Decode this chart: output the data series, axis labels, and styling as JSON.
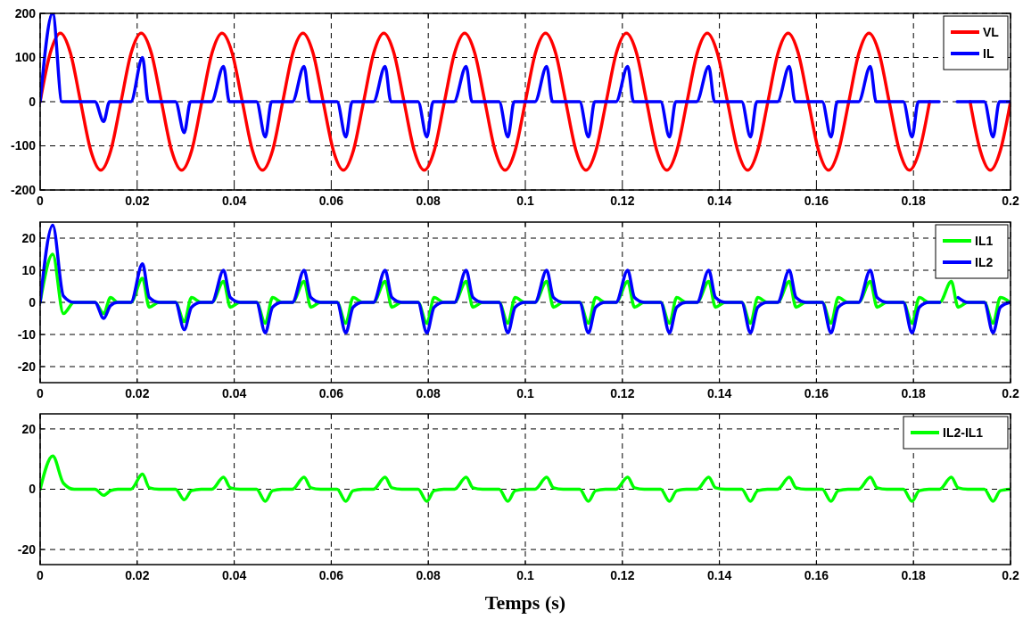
{
  "chart_data": [
    {
      "type": "line",
      "xlim": [
        0,
        0.2
      ],
      "xticks": [
        0,
        0.02,
        0.04,
        0.06,
        0.08,
        0.1,
        0.12,
        0.14,
        0.16,
        0.18,
        0.2
      ],
      "ylim": [
        -200,
        200
      ],
      "yticks": [
        -200,
        -100,
        0,
        100,
        200
      ],
      "grid": true,
      "legend": "top right",
      "series": [
        {
          "name": "VL",
          "color": "#ff0000",
          "x": [
            0,
            0.00208,
            0.00417,
            0.00625,
            0.00833,
            0.01042,
            0.0125,
            0.01458,
            0.01667,
            0.01875,
            0.02083,
            0.02292,
            0.025,
            0.02708,
            0.02917,
            0.03125,
            0.03333,
            0.03542,
            0.0375,
            0.03958,
            0.04167,
            0.04375,
            0.04583,
            0.04792,
            0.05,
            0.05208,
            0.05417,
            0.05625,
            0.05833,
            0.06042,
            0.0625,
            0.06458,
            0.06667,
            0.06875,
            0.07083,
            0.07292,
            0.075,
            0.07708,
            0.07917,
            0.08125,
            0.08333,
            0.08542,
            0.0875,
            0.08958,
            0.09167,
            0.09375,
            0.09583,
            0.09792,
            0.1,
            0.10208,
            0.10417,
            0.10625,
            0.10833,
            0.11042,
            0.1125,
            0.11458,
            0.11667,
            0.11875,
            0.12083,
            0.12292,
            0.125,
            0.12708,
            0.12917,
            0.13125,
            0.13333,
            0.13542,
            0.1375,
            0.13958,
            0.14167,
            0.14375,
            0.14583,
            0.14792,
            0.15,
            0.15208,
            0.15417,
            0.15625,
            0.15833,
            0.16042,
            0.1625,
            0.16458,
            0.16667,
            0.16875,
            0.17083,
            0.17292,
            0.175,
            0.17708,
            0.17917,
            0.18125,
            0.18333,
            0.18542,
            0.1875,
            0.18958,
            0.19167,
            0.19375,
            0.19583,
            0.19792,
            0.2
          ],
          "values": [
            0,
            110,
            155,
            110,
            0,
            -110,
            -155,
            -110,
            0,
            110,
            155,
            110,
            0,
            -110,
            -155,
            -110,
            0,
            110,
            155,
            110,
            0,
            -110,
            -155,
            -110,
            0,
            110,
            155,
            110,
            0,
            -110,
            -155,
            -110,
            0,
            110,
            155,
            110,
            0,
            -110,
            -155,
            -110,
            0,
            110,
            155,
            110,
            0,
            -110,
            -155,
            -110,
            0,
            110,
            155,
            110,
            0,
            -110,
            -155,
            -110,
            0,
            110,
            155,
            110,
            0,
            -110,
            -155,
            -110,
            0,
            110,
            155,
            110,
            0,
            -110,
            -155,
            -110,
            0,
            110,
            155,
            110,
            0,
            -110,
            -155,
            -110,
            0,
            110,
            155,
            110,
            0,
            -110,
            -155,
            -110,
            0,
            null,
            null,
            null,
            0,
            -110,
            -155,
            -110,
            0
          ]
        },
        {
          "name": "IL",
          "color": "#0000ff",
          "x": [
            0,
            0.0026,
            0.0045,
            0.0113,
            0.0131,
            0.0143,
            0.0187,
            0.0211,
            0.0223,
            0.0279,
            0.0297,
            0.031,
            0.0353,
            0.0378,
            0.039,
            0.0446,
            0.0464,
            0.0477,
            0.052,
            0.0544,
            0.0556,
            0.0612,
            0.063,
            0.0643,
            0.0687,
            0.0711,
            0.0723,
            0.0779,
            0.0797,
            0.081,
            0.0853,
            0.0878,
            0.089,
            0.0946,
            0.0964,
            0.0977,
            0.102,
            0.1044,
            0.1056,
            0.1112,
            0.113,
            0.1143,
            0.1187,
            0.1211,
            0.1223,
            0.1279,
            0.1297,
            0.131,
            0.1353,
            0.1378,
            0.139,
            0.1446,
            0.1464,
            0.1477,
            0.152,
            0.1544,
            0.1556,
            0.1612,
            0.163,
            0.1643,
            0.1687,
            0.1711,
            0.1723,
            0.1779,
            0.1797,
            0.181,
            0.1853,
            0.1878,
            0.189,
            0.1946,
            0.1964,
            0.1977,
            0.2
          ],
          "values": [
            0,
            200,
            0,
            0,
            -45,
            0,
            0,
            100,
            0,
            0,
            -70,
            0,
            0,
            80,
            0,
            0,
            -80,
            0,
            0,
            80,
            0,
            0,
            -80,
            0,
            0,
            80,
            0,
            0,
            -80,
            0,
            0,
            80,
            0,
            0,
            -80,
            0,
            0,
            80,
            0,
            0,
            -80,
            0,
            0,
            80,
            0,
            0,
            -80,
            0,
            0,
            80,
            0,
            0,
            -80,
            0,
            0,
            80,
            0,
            0,
            -80,
            0,
            0,
            80,
            0,
            0,
            -80,
            0,
            0,
            null,
            0,
            0,
            -80,
            0,
            0
          ]
        }
      ]
    },
    {
      "type": "line",
      "xlim": [
        0,
        0.2
      ],
      "xticks": [
        0,
        0.02,
        0.04,
        0.06,
        0.08,
        0.1,
        0.12,
        0.14,
        0.16,
        0.18,
        0.2
      ],
      "ylim": [
        -25,
        25
      ],
      "yticks": [
        -20,
        -10,
        0,
        10,
        20
      ],
      "grid": true,
      "legend": "top right",
      "x": [
        0,
        0.0026,
        0.0048,
        0.007,
        0.0113,
        0.0131,
        0.0145,
        0.016,
        0.0187,
        0.0211,
        0.0225,
        0.0245,
        0.0279,
        0.0297,
        0.0312,
        0.0332,
        0.0354,
        0.0378,
        0.0392,
        0.0412,
        0.0446,
        0.0464,
        0.0479,
        0.0499,
        0.052,
        0.0544,
        0.0558,
        0.0578,
        0.0612,
        0.063,
        0.0645,
        0.0665,
        0.0687,
        0.0711,
        0.0725,
        0.0745,
        0.0779,
        0.0797,
        0.0812,
        0.0832,
        0.0854,
        0.0878,
        0.0892,
        0.0912,
        0.0946,
        0.0964,
        0.0979,
        0.0999,
        0.102,
        0.1044,
        0.1058,
        0.1078,
        0.1112,
        0.113,
        0.1145,
        0.1165,
        0.1187,
        0.1211,
        0.1225,
        0.1245,
        0.1279,
        0.1297,
        0.1312,
        0.1332,
        0.1354,
        0.1378,
        0.1392,
        0.1412,
        0.1446,
        0.1464,
        0.1479,
        0.1499,
        0.152,
        0.1544,
        0.1558,
        0.1578,
        0.1612,
        0.163,
        0.1645,
        0.1665,
        0.1687,
        0.1711,
        0.1725,
        0.1745,
        0.1779,
        0.1797,
        0.1812,
        0.1832,
        0.1854,
        0.1878,
        0.1892,
        0.1912,
        0.1946,
        0.1964,
        0.1979,
        0.1999
      ],
      "series": [
        {
          "name": "IL1",
          "color": "#00ff00",
          "values": [
            0,
            15,
            -3.5,
            0,
            0,
            -3.5,
            1.5,
            0,
            0,
            7.5,
            -1.5,
            0,
            0,
            -6,
            1.5,
            0,
            0,
            6.5,
            -1.5,
            0,
            0,
            -6.5,
            1.5,
            0,
            0,
            6.5,
            -1.5,
            0,
            0,
            -6.5,
            1.5,
            0,
            0,
            6.5,
            -1.5,
            0,
            0,
            -6.5,
            1.5,
            0,
            0,
            6.5,
            -1.5,
            0,
            0,
            -6.5,
            1.5,
            0,
            0,
            6.5,
            -1.5,
            0,
            0,
            -6.5,
            1.5,
            0,
            0,
            6.5,
            -1.5,
            0,
            0,
            -6.5,
            1.5,
            0,
            0,
            6.5,
            -1.5,
            0,
            0,
            -6.5,
            1.5,
            0,
            0,
            6.5,
            -1.5,
            0,
            0,
            -6.5,
            1.5,
            0,
            0,
            6.5,
            -1.5,
            0,
            0,
            -6.5,
            1.5,
            0,
            0,
            6.5,
            -1.5,
            0,
            0,
            -6.5,
            1.5,
            0
          ]
        },
        {
          "name": "IL2",
          "color": "#0000ff",
          "values": [
            0,
            24,
            2,
            0,
            0,
            -5,
            -1,
            0,
            0,
            12,
            1.5,
            0,
            0,
            -8.5,
            -1.5,
            0,
            0,
            10,
            1.5,
            0,
            0,
            -9.5,
            -1.5,
            0,
            0,
            10,
            1.5,
            0,
            0,
            -9.5,
            -1.5,
            0,
            0,
            10,
            1.5,
            0,
            0,
            -9.5,
            -1.5,
            0,
            0,
            10,
            1.5,
            0,
            0,
            -9.5,
            -1.5,
            0,
            0,
            10,
            1.5,
            0,
            0,
            -9.5,
            -1.5,
            0,
            0,
            10,
            1.5,
            0,
            0,
            -9.5,
            -1.5,
            0,
            0,
            10,
            1.5,
            0,
            0,
            -9.5,
            -1.5,
            0,
            0,
            10,
            1.5,
            0,
            0,
            -9.5,
            -1.5,
            0,
            0,
            10,
            1.5,
            0,
            0,
            -9.5,
            -1.5,
            0,
            0,
            null,
            1.5,
            0,
            0,
            -9.5,
            -1.5,
            0
          ]
        }
      ]
    },
    {
      "type": "line",
      "xlim": [
        0,
        0.2
      ],
      "xticks": [
        0,
        0.02,
        0.04,
        0.06,
        0.08,
        0.1,
        0.12,
        0.14,
        0.16,
        0.18,
        0.2
      ],
      "ylim": [
        -25,
        25
      ],
      "yticks": [
        -20,
        0,
        20
      ],
      "grid": true,
      "legend": "top right",
      "xlabel": "Temps (s)",
      "x": [
        0,
        0.0026,
        0.0048,
        0.007,
        0.0113,
        0.0131,
        0.0145,
        0.016,
        0.0187,
        0.0211,
        0.0225,
        0.0245,
        0.0279,
        0.0297,
        0.0312,
        0.0332,
        0.0354,
        0.0378,
        0.0392,
        0.0412,
        0.0446,
        0.0464,
        0.0479,
        0.0499,
        0.052,
        0.0544,
        0.0558,
        0.0578,
        0.0612,
        0.063,
        0.0645,
        0.0665,
        0.0687,
        0.0711,
        0.0725,
        0.0745,
        0.0779,
        0.0797,
        0.0812,
        0.0832,
        0.0854,
        0.0878,
        0.0892,
        0.0912,
        0.0946,
        0.0964,
        0.0979,
        0.0999,
        0.102,
        0.1044,
        0.1058,
        0.1078,
        0.1112,
        0.113,
        0.1145,
        0.1165,
        0.1187,
        0.1211,
        0.1225,
        0.1245,
        0.1279,
        0.1297,
        0.1312,
        0.1332,
        0.1354,
        0.1378,
        0.1392,
        0.1412,
        0.1446,
        0.1464,
        0.1479,
        0.1499,
        0.152,
        0.1544,
        0.1558,
        0.1578,
        0.1612,
        0.163,
        0.1645,
        0.1665,
        0.1687,
        0.1711,
        0.1725,
        0.1745,
        0.1779,
        0.1797,
        0.1812,
        0.1832,
        0.1854,
        0.1878,
        0.1892,
        0.1912,
        0.1946,
        0.1964,
        0.1979,
        0.1999
      ],
      "series": [
        {
          "name": "IL2-IL1",
          "color": "#00ff00",
          "values": [
            0,
            11,
            2,
            0,
            0,
            -2,
            -0.5,
            0,
            0,
            5,
            0.5,
            0,
            0,
            -3.5,
            -0.5,
            0,
            0,
            4,
            0.5,
            0,
            0,
            -4,
            -0.5,
            0,
            0,
            4,
            0.5,
            0,
            0,
            -4,
            -0.5,
            0,
            0,
            4,
            0.5,
            0,
            0,
            -4,
            -0.5,
            0,
            0,
            4,
            0.5,
            0,
            0,
            -4,
            -0.5,
            0,
            0,
            4,
            0.5,
            0,
            0,
            -4,
            -0.5,
            0,
            0,
            4,
            0.5,
            0,
            0,
            -4,
            -0.5,
            0,
            0,
            4,
            0.5,
            0,
            0,
            -4,
            -0.5,
            0,
            0,
            4,
            0.5,
            0,
            0,
            -4,
            -0.5,
            0,
            0,
            4,
            0.5,
            0,
            0,
            -4,
            -0.5,
            0,
            0,
            4,
            0.5,
            0,
            0,
            -4,
            -0.5,
            0
          ]
        }
      ]
    }
  ]
}
